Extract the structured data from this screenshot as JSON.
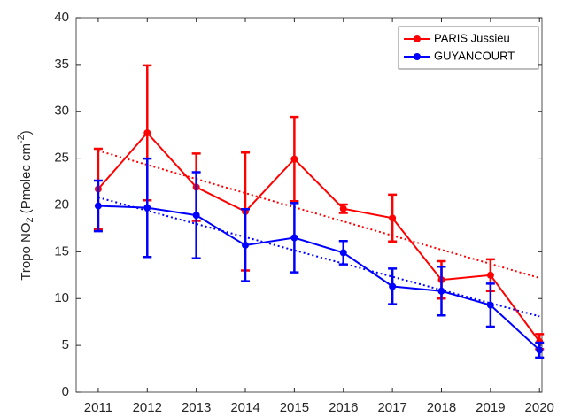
{
  "chart_data": {
    "type": "line",
    "ylabel": {
      "text": "Tropo NO",
      "sub": "2",
      "mid": " (Pmolec cm",
      "sup": "-2",
      "end": ")"
    },
    "x": [
      2011,
      2012,
      2013,
      2014,
      2015,
      2016,
      2017,
      2018,
      2019,
      2020
    ],
    "xlim": [
      2010.55,
      2020.05
    ],
    "xticks": [
      2011,
      2012,
      2013,
      2014,
      2015,
      2016,
      2017,
      2018,
      2019,
      2020
    ],
    "ylim": [
      0,
      40
    ],
    "yticks": [
      0,
      5,
      10,
      15,
      20,
      25,
      30,
      35,
      40
    ],
    "grid": false,
    "legend": "upper right",
    "series": [
      {
        "name": "PARIS Jussieu",
        "color": "#ff0000",
        "values": [
          21.7,
          27.7,
          21.9,
          19.3,
          24.9,
          19.6,
          18.6,
          12.0,
          12.5,
          5.4
        ],
        "errors": [
          4.3,
          7.2,
          3.6,
          6.3,
          4.5,
          0.45,
          2.5,
          2.0,
          1.7,
          0.8
        ],
        "trend": [
          25.8,
          12.2
        ]
      },
      {
        "name": "GUYANCOURT",
        "color": "#0000ff",
        "values": [
          19.9,
          19.7,
          18.9,
          15.7,
          16.5,
          14.9,
          11.3,
          10.8,
          9.3,
          4.5
        ],
        "errors": [
          2.7,
          5.25,
          4.6,
          3.85,
          3.7,
          1.25,
          1.9,
          2.6,
          2.3,
          0.8
        ],
        "trend": [
          20.8,
          8.1
        ]
      }
    ]
  }
}
